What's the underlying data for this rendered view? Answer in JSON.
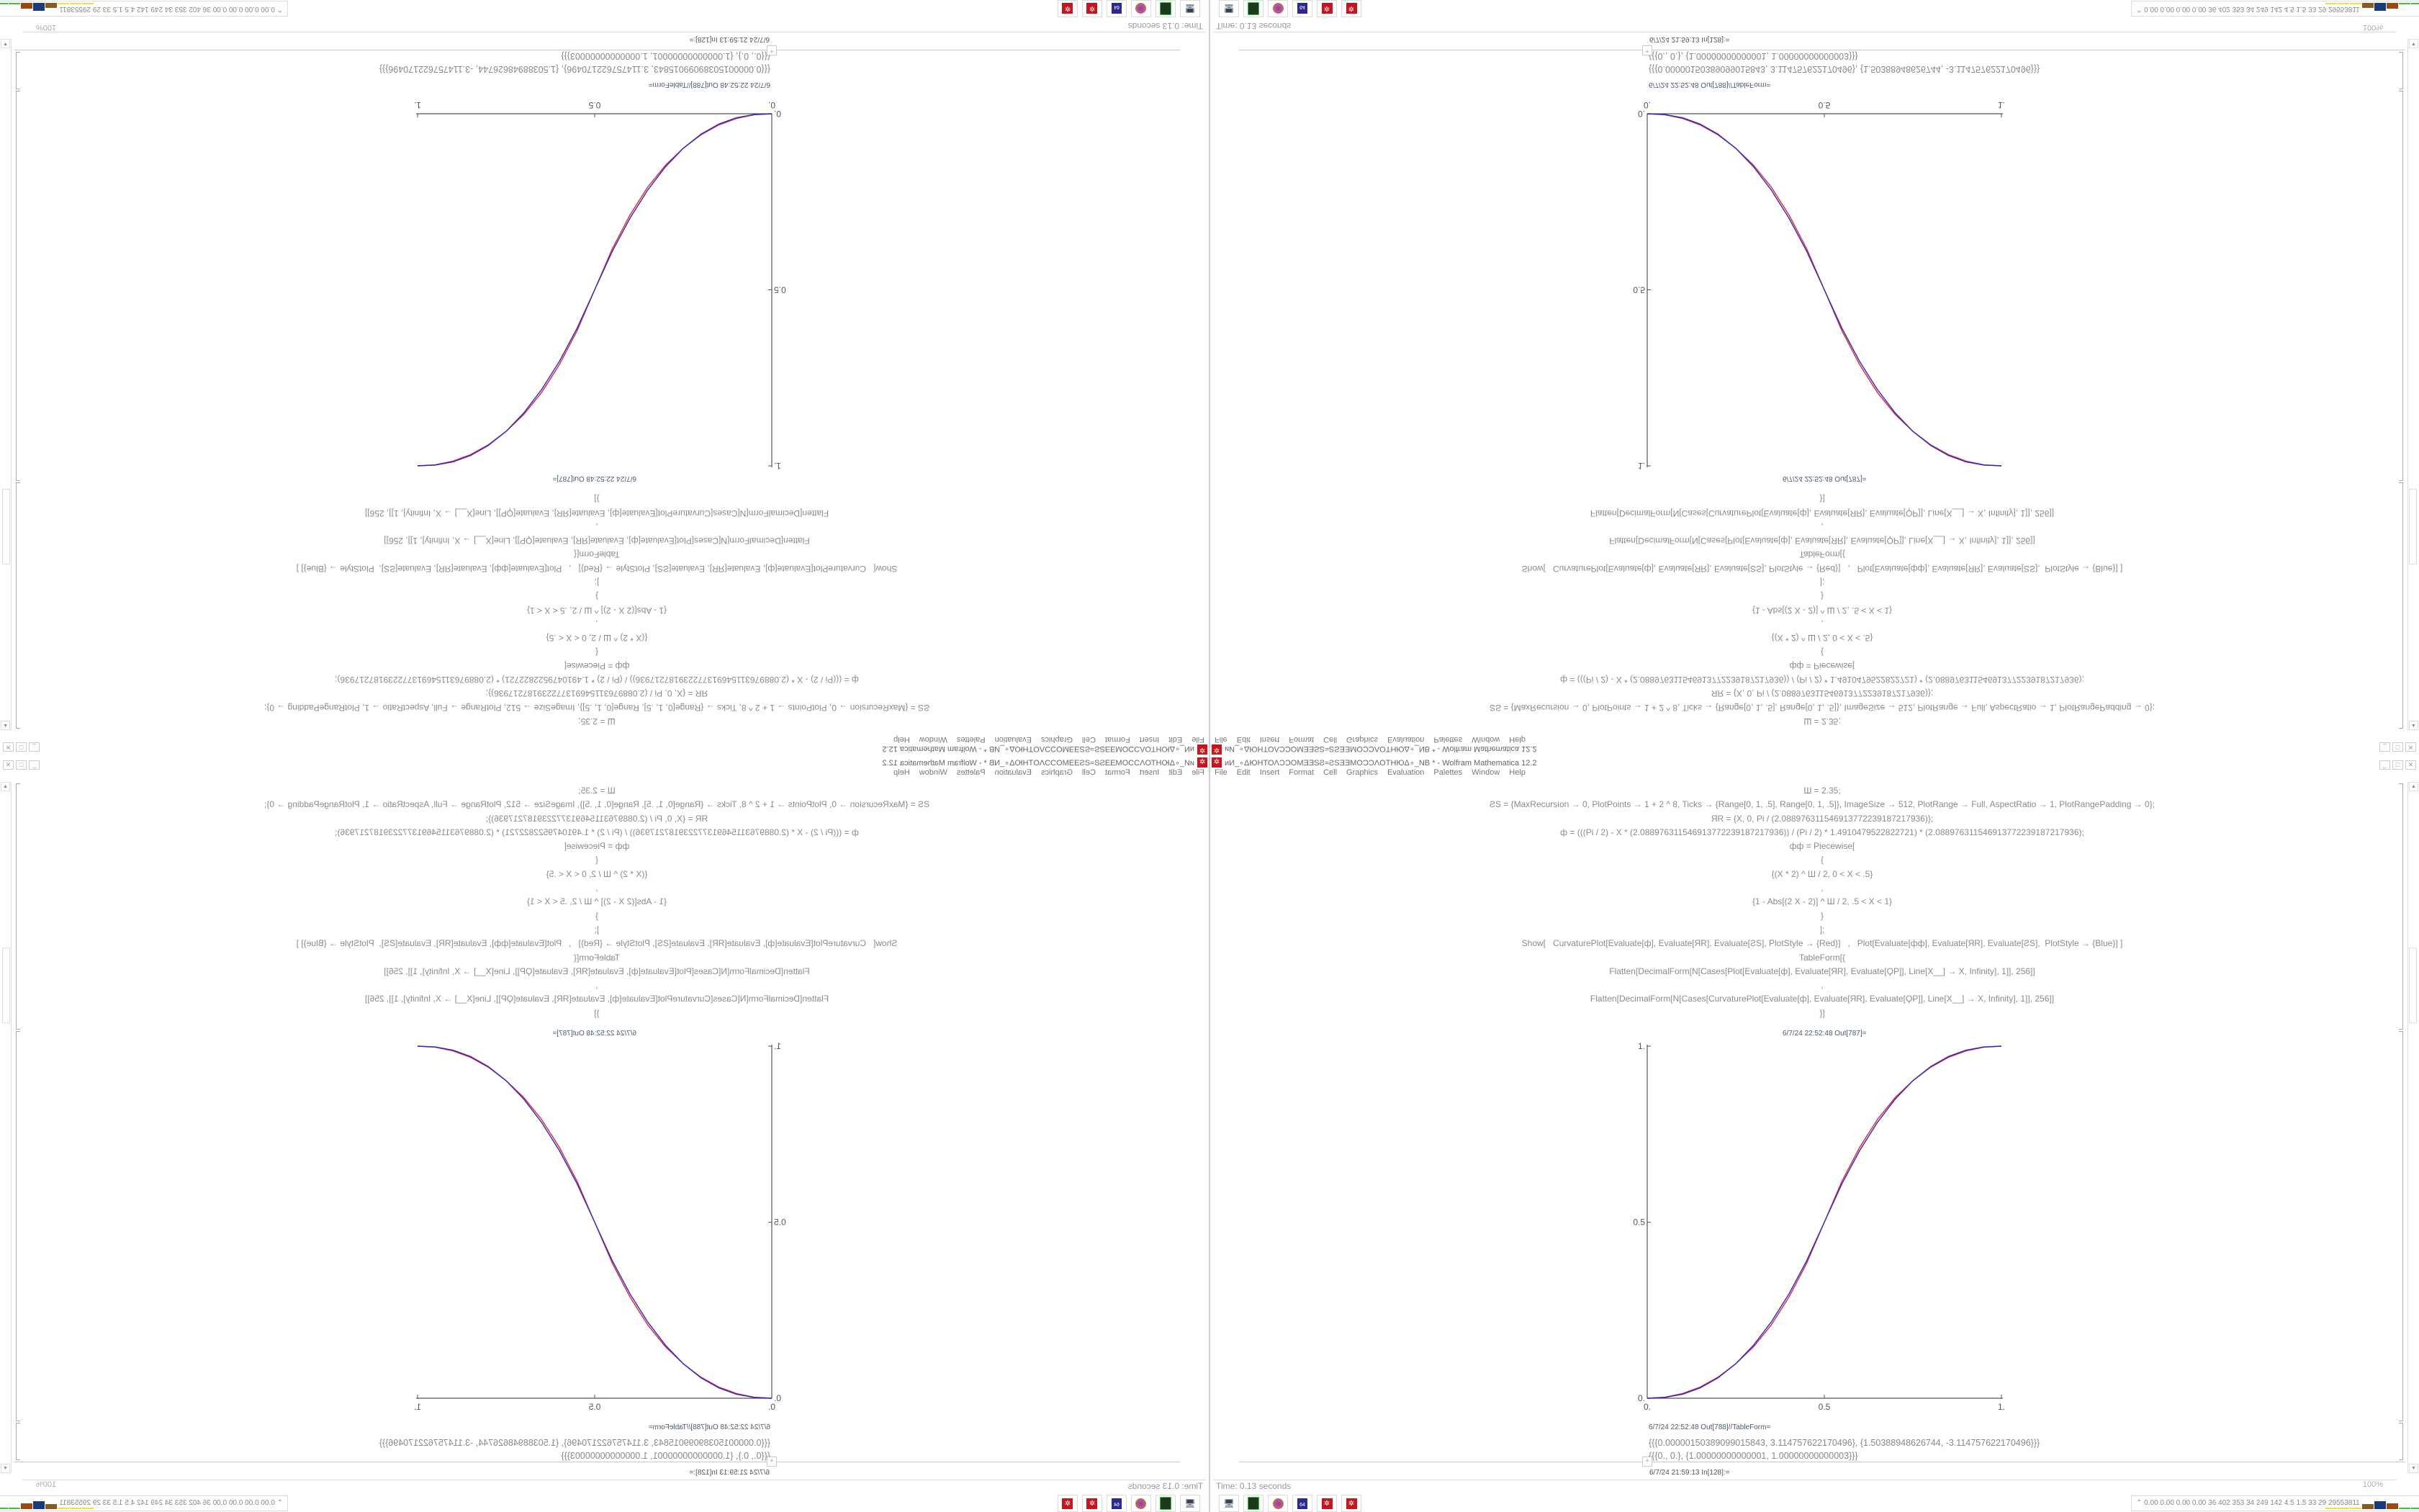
{
  "window": {
    "title": "ᴎИ_∘ΔЮHTOΛϽϽOMƎƎSƧ≈ƧSƎƎMOϽϽΛOTHЮΔ∘_NB * - Wolfram Mathematica 12.2",
    "menu": [
      "File",
      "Edit",
      "Insert",
      "Format",
      "Cell",
      "Graphics",
      "Evaluation",
      "Palettes",
      "Window",
      "Help"
    ],
    "controls": {
      "minimize": "_",
      "maximize": "□",
      "close": "✕"
    }
  },
  "notebook": {
    "code": [
      "Ш = 2.35;",
      "ƧS = {MaxRecursion → 0, PlotPoints → 1 + 2 ^ 8, Ticks → {Range[0, 1, .5], Range[0, 1, .5]}, ImageSize → 512, PlotRange → Full, AspectRatio → 1, PlotRangePadding → 0};",
      "ЯR = {X, 0, Pi / (2.088976311546913772239187217936)};",
      "ф = (((Pi / 2) - X * (2.088976311546913772239187217936)) / (Pi / 2) * 1.4910479522822721) * (2.088976311546913772239187217936);",
      "фф = Piecewise[",
      "{",
      "{(X * 2) ^ Ш / 2, 0 < X < .5}",
      ",",
      "{1 - Abs[(2 X - 2)] ^ Ш / 2, .5 < X < 1}",
      "}",
      "];",
      "Show[   CurvaturePlot[Evaluate[ф], Evaluate[ЯR], Evaluate[ƧS], PlotStyle → {Red}]   ,   Plot[Evaluate[фф], Evaluate[ЯR], Evaluate[ƧS],  PlotStyle → {Blue}] ]",
      "TableForm[{",
      "Flatten[DecimalForm[N[Cases[Plot[Evaluate[ф], Evaluate[ЯR], Evaluate[ϘP]], Line[X__] → X, Infinity], 1]], 256]]",
      ",",
      "Flatten[DecimalForm[N[Cases[CurvaturePlot[Evaluate[ф], Evaluate[ЯR], Evaluate[ϘP]], Line[X__] → X, Infinity], 1]], 256]]",
      "}]"
    ],
    "out787_label": "6/7/24 22:52:48 Out[787]=",
    "out788_label": "6/7/24 22:52:48 Out[788]//TableForm=",
    "out788_lines": [
      "{{{0.0000015038909901584​3, 3.114757622170496}, {1.50388948626744, -3.114757622170496}}}",
      "{{{0., 0.}, {1.00000000000001, 1.00000000000003}}}"
    ],
    "in128_label": "6/7/24 21:59:13 In[128]:="
  },
  "status": {
    "time": "Time: 0.13 seconds",
    "zoom": "100%"
  },
  "taskbar": {
    "icons": [
      "network-monitor-icon",
      "terminal-icon",
      "firefox-icon",
      "floppy-64-icon",
      "mathematica-icon",
      "mathematica-icon"
    ],
    "stats": "0.00 0.00 0.00 0.00  36  402  353  34  249  142  4.5  1.5  33  29  29553811",
    "bar_colors": [
      "#f0e040",
      "#f0e040",
      "#f0e040",
      "#8a5a20",
      "#1a3a80",
      "#9a4a10",
      "#40c040",
      "#40c040"
    ],
    "bar_levels": [
      0.1,
      0.1,
      0.1,
      0.5,
      0.8,
      0.6,
      0.15,
      0.15
    ]
  },
  "chart_data": {
    "type": "line",
    "x": [
      0,
      0.05,
      0.1,
      0.15,
      0.2,
      0.25,
      0.3,
      0.35,
      0.4,
      0.45,
      0.5,
      0.55,
      0.6,
      0.65,
      0.7,
      0.75,
      0.8,
      0.85,
      0.9,
      0.95,
      1
    ],
    "series": [
      {
        "color": "#e02828",
        "values": [
          0,
          0.003,
          0.0135,
          0.032,
          0.06,
          0.098,
          0.146,
          0.208,
          0.287,
          0.383,
          0.5,
          0.617,
          0.713,
          0.792,
          0.854,
          0.902,
          0.94,
          0.968,
          0.9865,
          0.997,
          1
        ]
      },
      {
        "color": "#2a2ad0",
        "values": [
          0,
          0.0022,
          0.0114,
          0.0295,
          0.0581,
          0.098,
          0.1505,
          0.2163,
          0.296,
          0.3903,
          0.5,
          0.6097,
          0.704,
          0.7837,
          0.8495,
          0.902,
          0.9419,
          0.9705,
          0.9886,
          0.9978,
          1
        ]
      }
    ],
    "xticks": [
      "0.",
      "0.5",
      "1."
    ],
    "yticks": [
      "0.",
      "0.5",
      "1."
    ],
    "xlim": [
      0,
      1
    ],
    "ylim": [
      0,
      1
    ],
    "grid": false
  }
}
